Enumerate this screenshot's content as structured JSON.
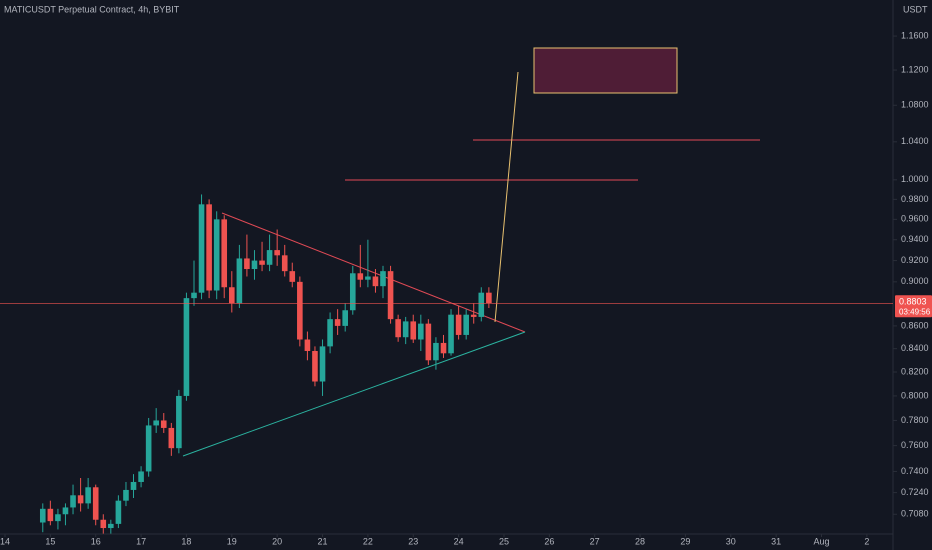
{
  "chart_data": {
    "type": "candlestick",
    "title": "MATICUSDT Perpetual Contract, 4h, BYBIT",
    "currency": "USDT",
    "countdown": "03:49:56",
    "log_scale": true,
    "grid": false,
    "up_color": "#26a69a",
    "down_color": "#ef5350",
    "x": [
      14.833,
      15,
      15.167,
      15.333,
      15.5,
      15.667,
      15.833,
      16,
      16.167,
      16.333,
      16.5,
      16.667,
      16.833,
      17,
      17.167,
      17.333,
      17.5,
      17.667,
      17.833,
      18,
      18.167,
      18.333,
      18.5,
      18.667,
      18.833,
      19,
      19.167,
      19.333,
      19.5,
      19.667,
      19.833,
      20,
      20.167,
      20.333,
      20.5,
      20.667,
      20.833,
      21,
      21.167,
      21.333,
      21.5,
      21.667,
      21.833,
      22,
      22.167,
      22.333,
      22.5,
      22.667,
      22.833,
      23,
      23.167,
      23.333,
      23.5,
      23.667,
      23.833,
      24,
      24.167,
      24.333,
      24.5,
      24.667
    ],
    "open": [
      0.702,
      0.712,
      0.703,
      0.708,
      0.713,
      0.722,
      0.716,
      0.728,
      0.704,
      0.698,
      0.701,
      0.718,
      0.726,
      0.732,
      0.74,
      0.776,
      0.78,
      0.774,
      0.758,
      0.8,
      0.885,
      0.89,
      0.975,
      0.892,
      0.96,
      0.895,
      0.88,
      0.922,
      0.912,
      0.92,
      0.916,
      0.93,
      0.925,
      0.91,
      0.9,
      0.848,
      0.838,
      0.812,
      0.842,
      0.866,
      0.86,
      0.874,
      0.908,
      0.902,
      0.905,
      0.896,
      0.91,
      0.866,
      0.85,
      0.864,
      0.848,
      0.862,
      0.83,
      0.845,
      0.836,
      0.87,
      0.852,
      0.87,
      0.868,
      0.89
    ],
    "high": [
      0.716,
      0.718,
      0.712,
      0.716,
      0.73,
      0.735,
      0.735,
      0.73,
      0.708,
      0.704,
      0.722,
      0.732,
      0.738,
      0.744,
      0.782,
      0.79,
      0.786,
      0.778,
      0.805,
      0.89,
      0.92,
      0.985,
      0.98,
      0.968,
      0.964,
      0.91,
      0.935,
      0.945,
      0.93,
      0.938,
      0.945,
      0.95,
      0.935,
      0.918,
      0.905,
      0.855,
      0.842,
      0.848,
      0.872,
      0.875,
      0.88,
      0.915,
      0.935,
      0.94,
      0.912,
      0.915,
      0.915,
      0.87,
      0.868,
      0.87,
      0.87,
      0.866,
      0.85,
      0.852,
      0.875,
      0.878,
      0.875,
      0.88,
      0.895,
      0.895
    ],
    "low": [
      0.695,
      0.7,
      0.697,
      0.7,
      0.708,
      0.71,
      0.712,
      0.7,
      0.694,
      0.694,
      0.698,
      0.714,
      0.72,
      0.728,
      0.736,
      0.77,
      0.77,
      0.752,
      0.754,
      0.796,
      0.878,
      0.884,
      0.885,
      0.884,
      0.885,
      0.872,
      0.876,
      0.905,
      0.902,
      0.91,
      0.91,
      0.915,
      0.905,
      0.895,
      0.842,
      0.83,
      0.808,
      0.8,
      0.836,
      0.852,
      0.855,
      0.87,
      0.895,
      0.895,
      0.89,
      0.885,
      0.862,
      0.846,
      0.844,
      0.845,
      0.838,
      0.826,
      0.822,
      0.832,
      0.834,
      0.848,
      0.848,
      0.862,
      0.864,
      0.876
    ],
    "close": [
      0.712,
      0.703,
      0.708,
      0.713,
      0.722,
      0.716,
      0.728,
      0.704,
      0.698,
      0.701,
      0.718,
      0.726,
      0.732,
      0.74,
      0.776,
      0.78,
      0.774,
      0.758,
      0.8,
      0.885,
      0.89,
      0.975,
      0.892,
      0.96,
      0.895,
      0.88,
      0.922,
      0.912,
      0.92,
      0.916,
      0.93,
      0.925,
      0.91,
      0.9,
      0.848,
      0.838,
      0.812,
      0.842,
      0.866,
      0.86,
      0.874,
      0.908,
      0.902,
      0.905,
      0.896,
      0.91,
      0.866,
      0.85,
      0.864,
      0.848,
      0.862,
      0.83,
      0.845,
      0.836,
      0.87,
      0.852,
      0.87,
      0.868,
      0.89,
      0.8803
    ],
    "xlim": [
      13.89,
      33.51
    ],
    "ylim": [
      0.693,
      1.204
    ],
    "xticks": [
      14,
      15,
      16,
      17,
      18,
      19,
      20,
      21,
      22,
      23,
      24,
      25,
      26,
      27,
      28,
      29,
      30,
      31,
      {
        "value": 32,
        "label": "Aug"
      },
      {
        "value": 33,
        "label": "2"
      }
    ],
    "yticks": [
      {
        "value": 1.16,
        "label": "1.1600"
      },
      {
        "value": 1.12,
        "label": "1.1200"
      },
      {
        "value": 1.08,
        "label": "1.0800"
      },
      {
        "value": 1.04,
        "label": "1.0400"
      },
      {
        "value": 1.0,
        "label": "1.0000"
      },
      {
        "value": 0.98,
        "label": "0.9800"
      },
      {
        "value": 0.96,
        "label": "0.9600"
      },
      {
        "value": 0.94,
        "label": "0.9400"
      },
      {
        "value": 0.92,
        "label": "0.9200"
      },
      {
        "value": 0.9,
        "label": "0.9000"
      },
      {
        "value": 0.86,
        "label": "0.8600"
      },
      {
        "value": 0.84,
        "label": "0.8400"
      },
      {
        "value": 0.82,
        "label": "0.8200"
      },
      {
        "value": 0.8,
        "label": "0.8000"
      },
      {
        "value": 0.78,
        "label": "0.7800"
      },
      {
        "value": 0.76,
        "label": "0.7600"
      },
      {
        "value": 0.74,
        "label": "0.7400"
      },
      {
        "value": 0.724,
        "label": "0.7240"
      },
      {
        "value": 0.708,
        "label": "0.7080"
      }
    ]
  }
}
